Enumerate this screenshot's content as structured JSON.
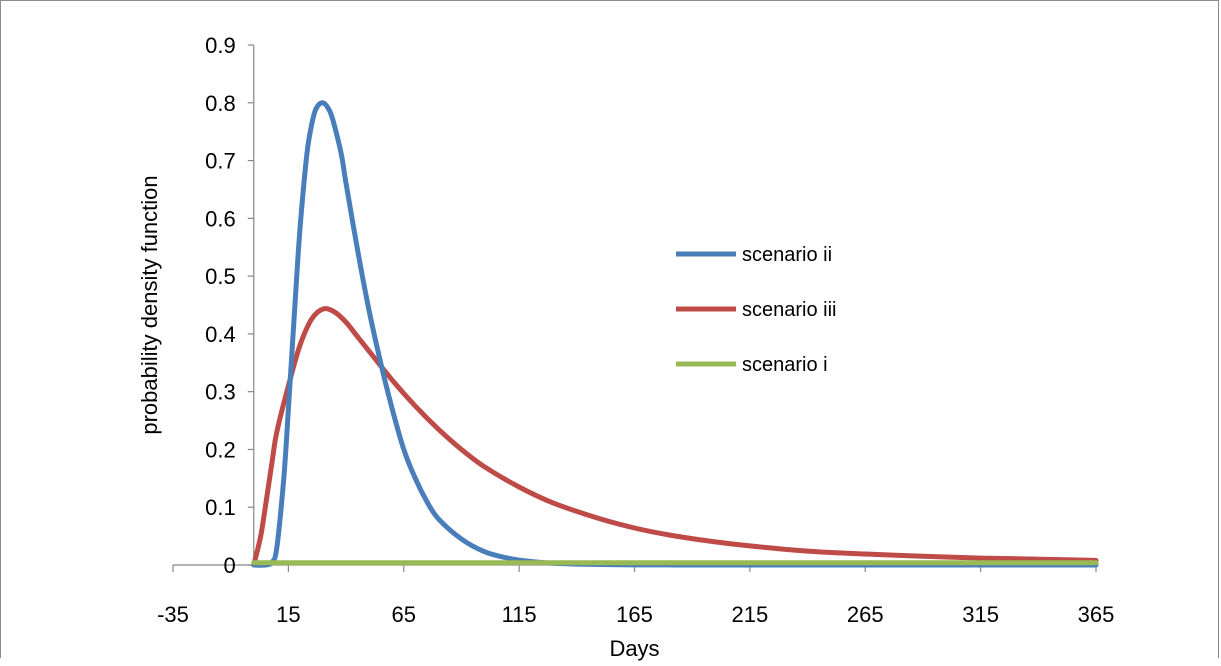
{
  "chart_data": {
    "type": "line",
    "xlabel": "Days",
    "ylabel": "probability density function",
    "xlim": [
      -35,
      365
    ],
    "ylim": [
      0,
      0.9
    ],
    "x_ticks": [
      -35,
      15,
      65,
      115,
      165,
      215,
      265,
      315,
      365
    ],
    "y_ticks": [
      0,
      0.1,
      0.2,
      0.3,
      0.4,
      0.5,
      0.6,
      0.7,
      0.8,
      0.9
    ],
    "grid": false,
    "legend_position": "center-right",
    "series": [
      {
        "name": "scenario ii",
        "color": "#4a7ebb",
        "x": [
          0,
          5,
          8,
          10,
          13,
          15,
          18,
          20,
          23,
          25,
          27,
          30,
          33,
          35,
          38,
          40,
          45,
          50,
          55,
          60,
          65,
          70,
          75,
          80,
          90,
          100,
          110,
          120,
          130,
          140,
          150,
          160,
          170,
          180,
          200,
          250,
          300,
          365
        ],
        "y": [
          0,
          0,
          0.005,
          0.03,
          0.15,
          0.27,
          0.46,
          0.58,
          0.71,
          0.76,
          0.79,
          0.8,
          0.785,
          0.76,
          0.71,
          0.66,
          0.545,
          0.44,
          0.35,
          0.27,
          0.2,
          0.15,
          0.11,
          0.08,
          0.045,
          0.023,
          0.012,
          0.006,
          0.003,
          0.0015,
          0.0008,
          0.0004,
          0.0002,
          0.0001,
          0,
          0,
          0,
          0
        ]
      },
      {
        "name": "scenario iii",
        "color": "#be4b48",
        "x": [
          0,
          3,
          5,
          8,
          10,
          15,
          20,
          25,
          30,
          35,
          40,
          45,
          50,
          60,
          70,
          80,
          90,
          100,
          115,
          130,
          150,
          165,
          180,
          200,
          215,
          240,
          265,
          290,
          315,
          340,
          365
        ],
        "y": [
          0,
          0.05,
          0.1,
          0.18,
          0.23,
          0.31,
          0.38,
          0.425,
          0.443,
          0.438,
          0.42,
          0.395,
          0.37,
          0.32,
          0.275,
          0.235,
          0.2,
          0.17,
          0.135,
          0.107,
          0.08,
          0.064,
          0.052,
          0.04,
          0.033,
          0.024,
          0.019,
          0.015,
          0.012,
          0.01,
          0.008
        ]
      },
      {
        "name": "scenario i",
        "color": "#98b954",
        "x": [
          0,
          365
        ],
        "y": [
          0.004,
          0.004
        ]
      }
    ]
  }
}
